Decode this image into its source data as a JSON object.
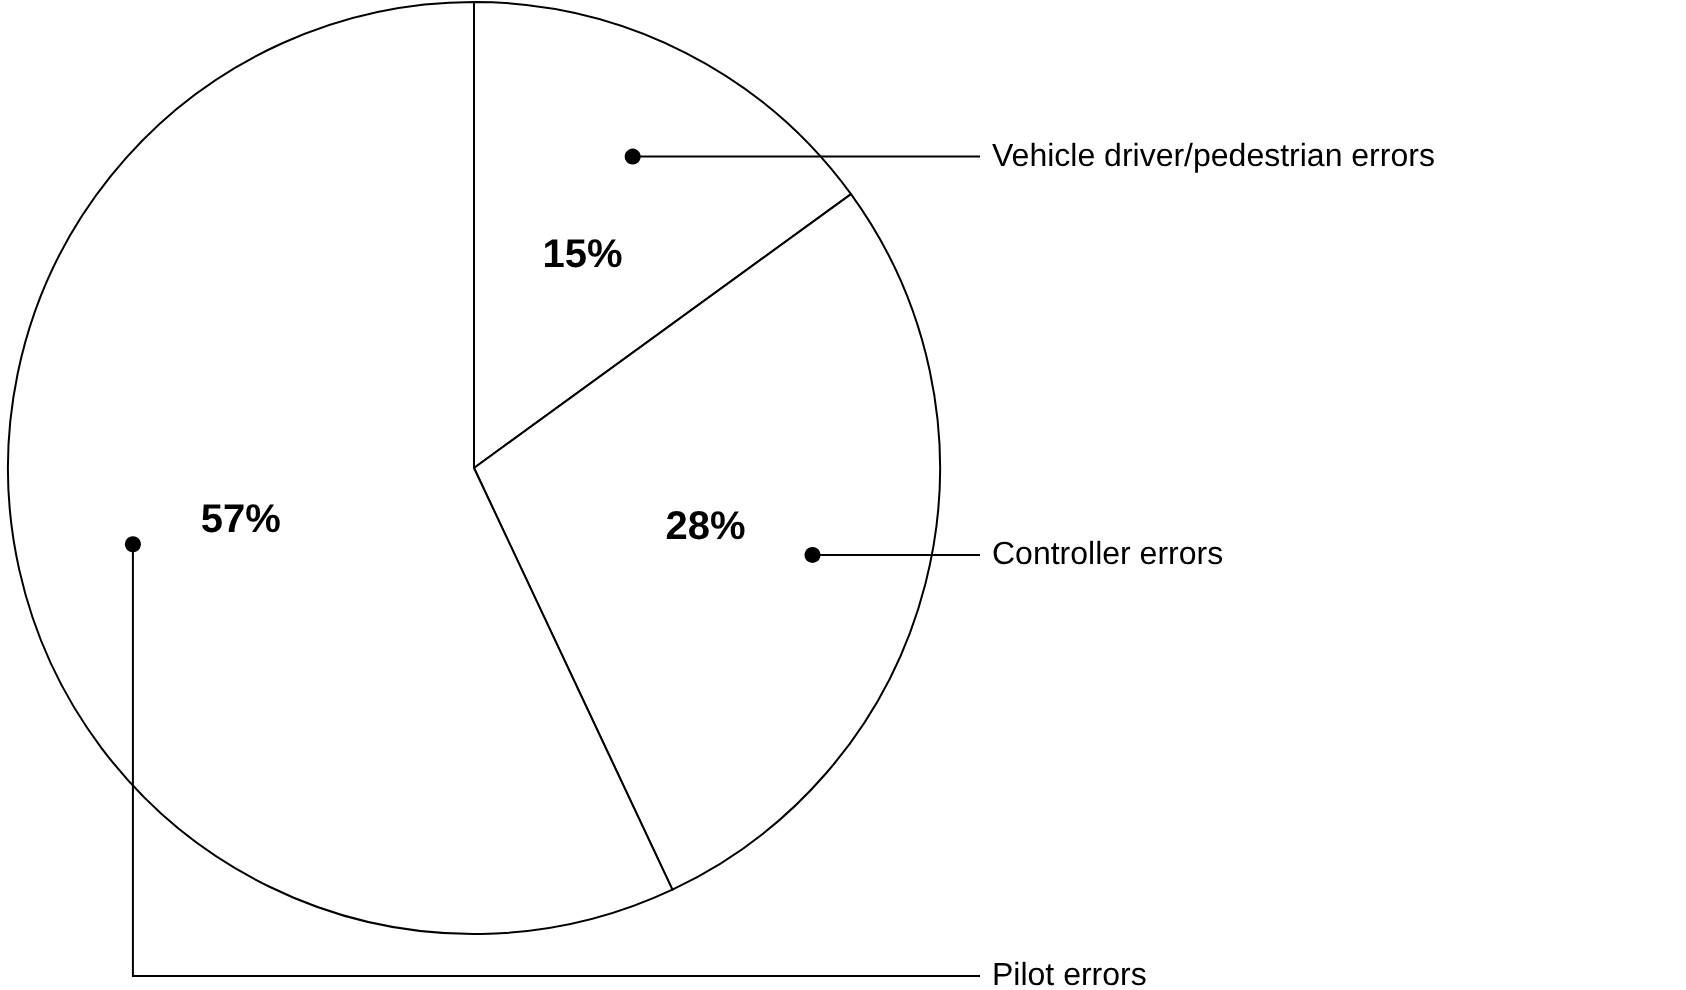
{
  "chart_data": {
    "type": "pie",
    "categories": [
      "Vehicle driver/pedestrian errors",
      "Controller errors",
      "Pilot errors"
    ],
    "values": [
      15,
      28,
      57
    ],
    "colors": [
      "#ffffff",
      "#ffffff",
      "#ffffff"
    ],
    "value_labels": [
      "15%",
      "28%",
      "57%"
    ]
  }
}
